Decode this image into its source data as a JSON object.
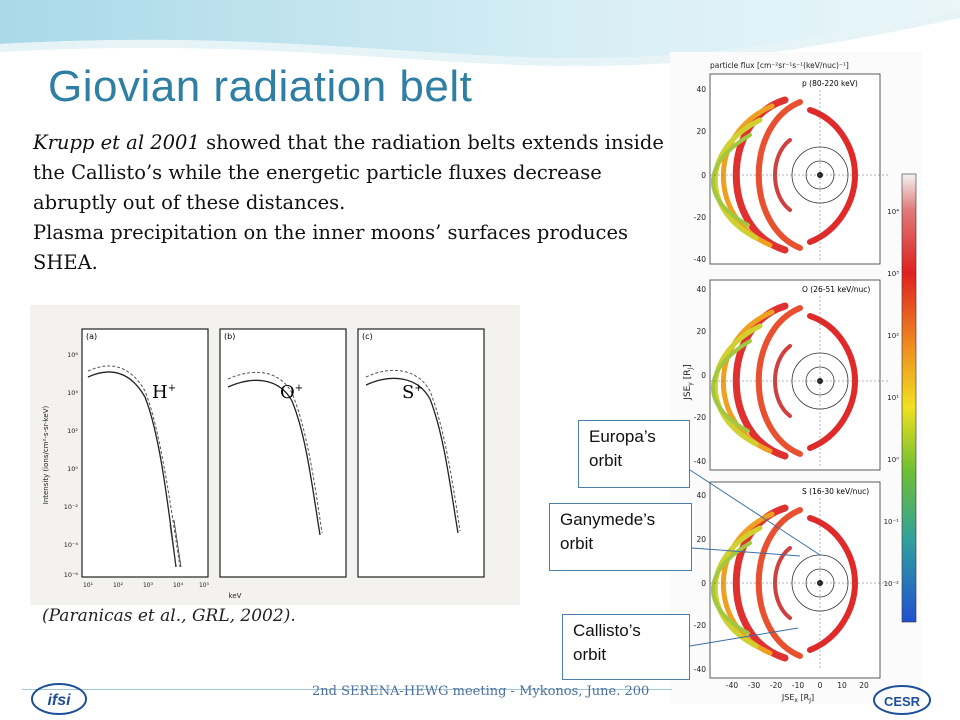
{
  "slide": {
    "title": "Giovian radiation belt",
    "paragraph1": {
      "ref": "Krupp et al 2001",
      "text": " showed that the radiation belts extends inside the Callisto’s while the energetic particle fluxes decrease abruptly out of these distances."
    },
    "paragraph2": "Plasma precipitation on  the inner moons’ surfaces produces SHEA.",
    "caption": "(Paranicas et al., GRL, 2002).",
    "footer": "2nd SERENA-HEWG meeting - Mykonos, June. 200"
  },
  "left_figure": {
    "ylabel": "Intensity (ions/cm²-s-sr-keV)",
    "xlabel": "keV",
    "panels": [
      {
        "tag": "(a)",
        "ion": "H",
        "charge": "+"
      },
      {
        "tag": "(b)",
        "ion": "O",
        "charge": "+"
      },
      {
        "tag": "(c)",
        "ion": "S",
        "charge": "+"
      }
    ],
    "yticks": [
      "10⁶",
      "10⁴",
      "10²",
      "10⁰",
      "10⁻²",
      "10⁻⁴",
      "10⁻⁶"
    ],
    "xticks": [
      "10¹",
      "10²",
      "10³",
      "10⁴",
      "10⁵"
    ]
  },
  "right_figure": {
    "colorbar_title": "particle flux [cm⁻²sr⁻¹s⁻¹(keV/nuc)⁻¹]",
    "ylabel": "JSE",
    "ylabel_sub": "y",
    "ylabel_unit": " [R",
    "ylabel_unit_sub": "J",
    "ylabel_close": "]",
    "xlabel": "JSE",
    "xlabel_sub": "x",
    "xlabel_unit": " [R",
    "xlabel_unit_sub": "J",
    "xlabel_close": "]",
    "panels": [
      {
        "label": "p (80-220 keV)"
      },
      {
        "label": "O (26-51 keV/nuc)"
      },
      {
        "label": "S (16-30 keV/nuc)"
      }
    ],
    "yticks": [
      "40",
      "20",
      "0",
      "-20",
      "-40"
    ],
    "xticks": [
      "-40",
      "-30",
      "-20",
      "-10",
      "0",
      "10",
      "20"
    ],
    "colorbar_ticks": [
      "10⁴",
      "10³",
      "10²",
      "10¹",
      "10⁰",
      "10⁻¹",
      "10⁻²"
    ]
  },
  "callouts": [
    {
      "line1": "Europa’s",
      "line2": "orbit"
    },
    {
      "line1": "Ganymede’s",
      "line2": "orbit"
    },
    {
      "line1": "Callisto’s",
      "line2": "orbit"
    }
  ],
  "logos": {
    "left": "ifsi",
    "right": "CESR"
  },
  "colors": {
    "title": "#2e7fa3",
    "wave": "#bfe2ec",
    "callout_border": "#4a7fb0"
  }
}
